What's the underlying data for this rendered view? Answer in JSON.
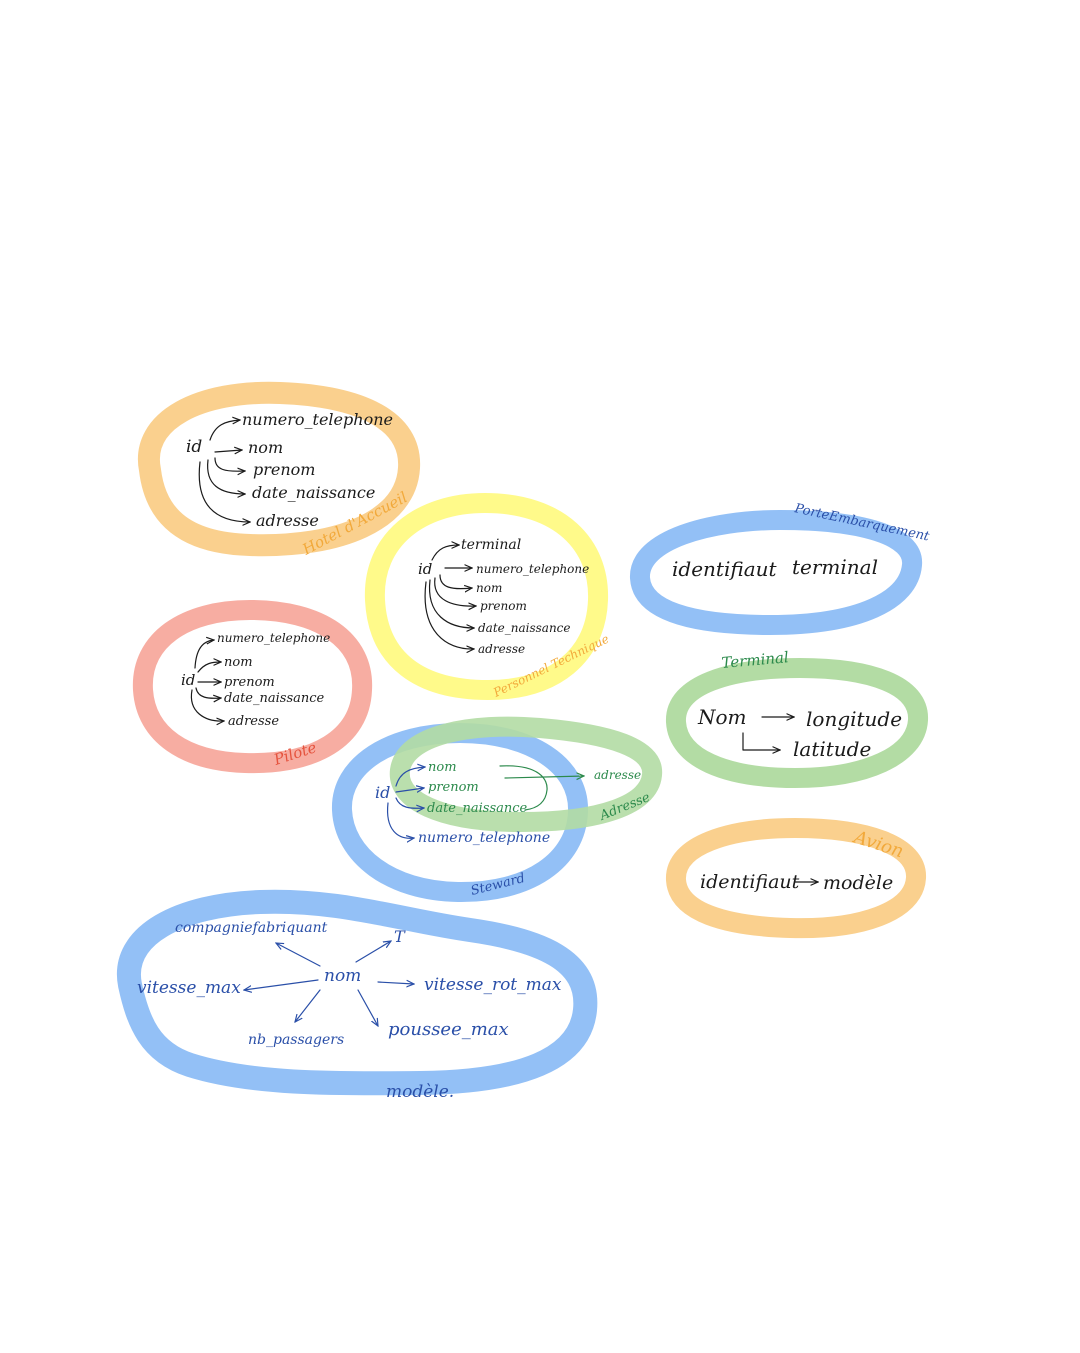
{
  "colors": {
    "orange": "#FAD08E",
    "yellow": "#FFFA8A",
    "red": "#F7ADA2",
    "blue": "#93C0F6",
    "green": "#B3DCA4",
    "ink_black": "#1b1b1b",
    "ink_blue": "#2a4fa8",
    "ink_green": "#2c8a4c",
    "ink_orange": "#F2A93B",
    "ink_red": "#E5533E"
  },
  "entities": {
    "hotel_accueil": {
      "name": "Hotel d'Accueil",
      "key": "id",
      "attributes": [
        "numero_telephone",
        "nom",
        "prenom",
        "date_naissance",
        "adresse"
      ]
    },
    "personnel_technique": {
      "name": "Personnel Technique",
      "key": "id",
      "attributes": [
        "terminal",
        "numero_telephone",
        "nom",
        "prenom",
        "date_naissance",
        "adresse"
      ]
    },
    "pilote": {
      "name": "Pilote",
      "key": "id",
      "attributes": [
        "numero_telephone",
        "nom",
        "prenom",
        "date_naissance",
        "adresse"
      ]
    },
    "steward": {
      "name": "Steward",
      "key": "id",
      "attributes": [
        "nom",
        "prenom",
        "date_naissance",
        "numero_telephone"
      ]
    },
    "adresse": {
      "name": "Adresse",
      "target": "adresse"
    },
    "porte_embarquement": {
      "name": "PorteEmbarquement",
      "attributes": [
        "identifiaut",
        "terminal"
      ]
    },
    "terminal": {
      "name": "Terminal",
      "key": "Nom",
      "attributes": [
        "longitude",
        "latitude"
      ]
    },
    "avion": {
      "name": "Avion",
      "key": "identifiaut",
      "attributes": [
        "modèle"
      ]
    },
    "modele": {
      "name": "modèle.",
      "key": "nom",
      "attributes": [
        "compagniefabriquant",
        "T",
        "vitesse_max",
        "vitesse_rot_max",
        "nb_passagers",
        "poussee_max"
      ]
    }
  }
}
